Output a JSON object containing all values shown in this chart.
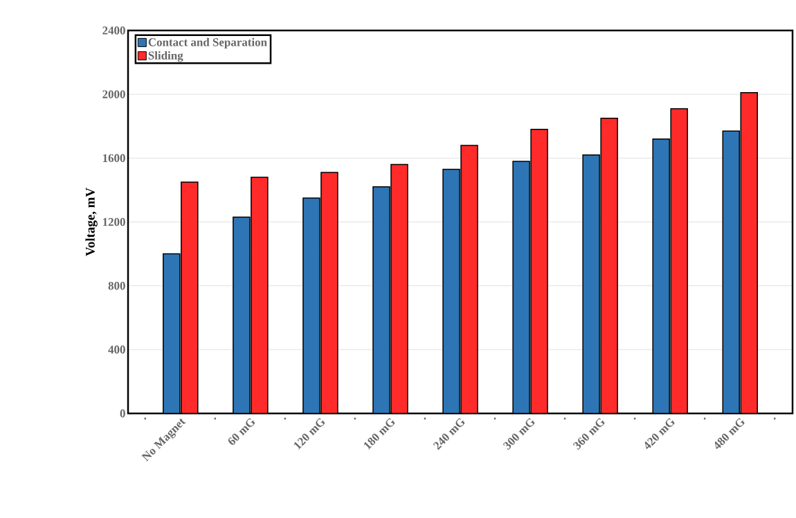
{
  "chart_data": {
    "type": "bar",
    "ylabel": "Voltage, mV",
    "categories": [
      ".",
      "No Magnet",
      ".",
      "60 mG",
      ".",
      "120 mG",
      ".",
      "180 mG",
      ".",
      "240 mG",
      ".",
      "300 mG",
      ".",
      "360 mG",
      ".",
      "420 mG",
      ".",
      "480 mG",
      "."
    ],
    "series": [
      {
        "name": "Contact and Separation",
        "color": "#2e75b6",
        "values": [
          null,
          1000,
          null,
          1230,
          null,
          1350,
          null,
          1420,
          null,
          1530,
          null,
          1580,
          null,
          1620,
          null,
          1720,
          null,
          1770,
          null
        ]
      },
      {
        "name": "Sliding",
        "color": "#ff2a2a",
        "values": [
          null,
          1450,
          null,
          1480,
          null,
          1510,
          null,
          1560,
          null,
          1680,
          null,
          1780,
          null,
          1850,
          null,
          1910,
          null,
          2010,
          null
        ]
      }
    ],
    "ylim": [
      0,
      2400
    ],
    "yticks": [
      0,
      400,
      800,
      1200,
      1600,
      2000,
      2400
    ],
    "grid": "y",
    "legend": "top left"
  }
}
